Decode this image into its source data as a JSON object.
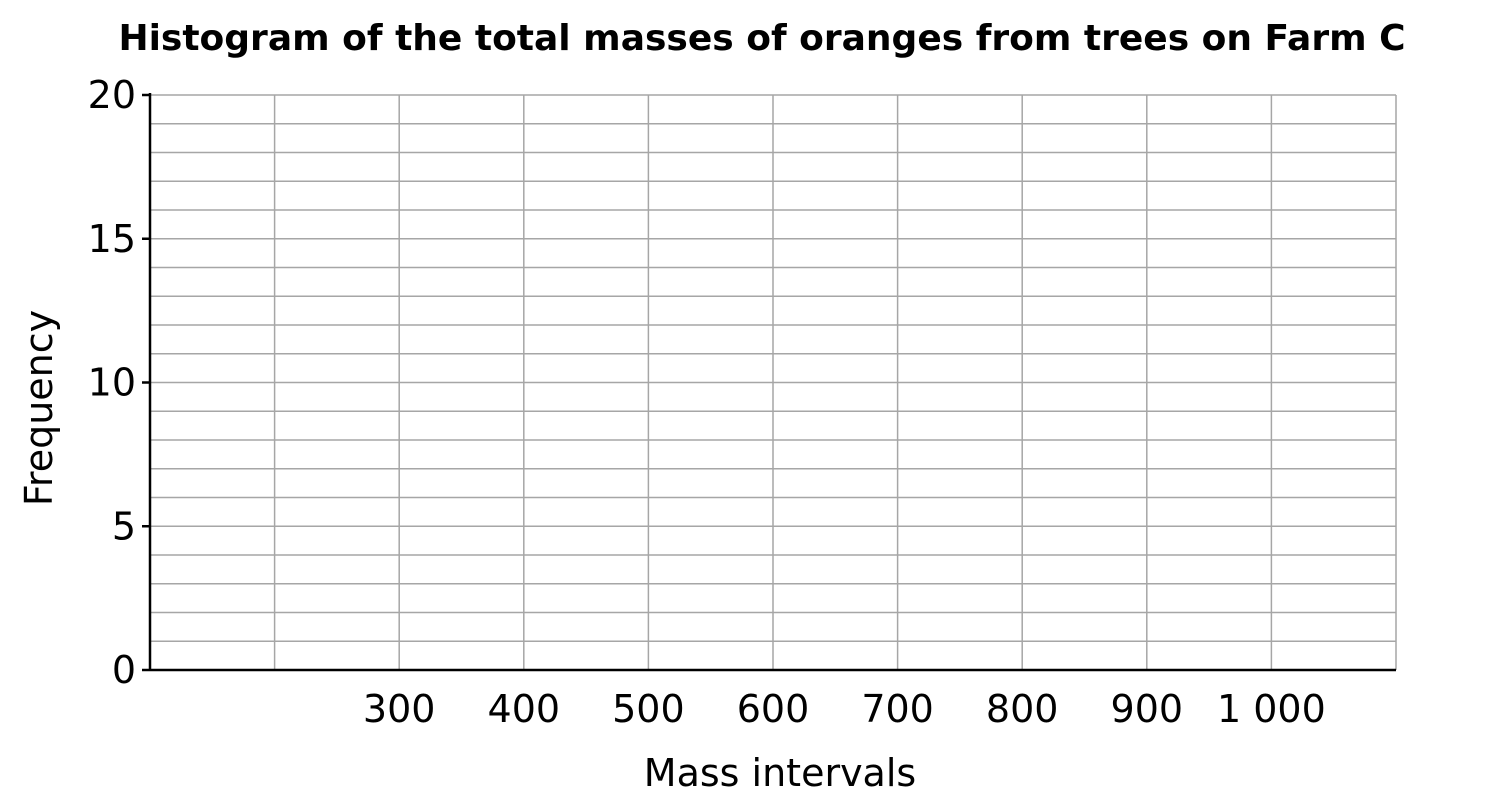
{
  "chart_data": {
    "type": "bar",
    "title": "Histogram of the total masses of oranges from trees on Farm C",
    "xlabel": "Mass intervals",
    "ylabel": "Frequency",
    "ylim": [
      0,
      20
    ],
    "xlim": [
      100,
      1100
    ],
    "y_ticks": [
      0,
      5,
      10,
      15,
      20
    ],
    "y_tick_labels": [
      "0",
      "5",
      "10",
      "15",
      "20"
    ],
    "y_minor_step": 1,
    "x_ticks": [
      300,
      400,
      500,
      600,
      700,
      800,
      900,
      1000
    ],
    "x_tick_labels": [
      "300",
      "400",
      "500",
      "600",
      "700",
      "800",
      "900",
      "1 000"
    ],
    "x_grid_values": [
      100,
      200,
      300,
      400,
      500,
      600,
      700,
      800,
      900,
      1000,
      1100
    ],
    "grid": true,
    "categories": [],
    "values": []
  }
}
